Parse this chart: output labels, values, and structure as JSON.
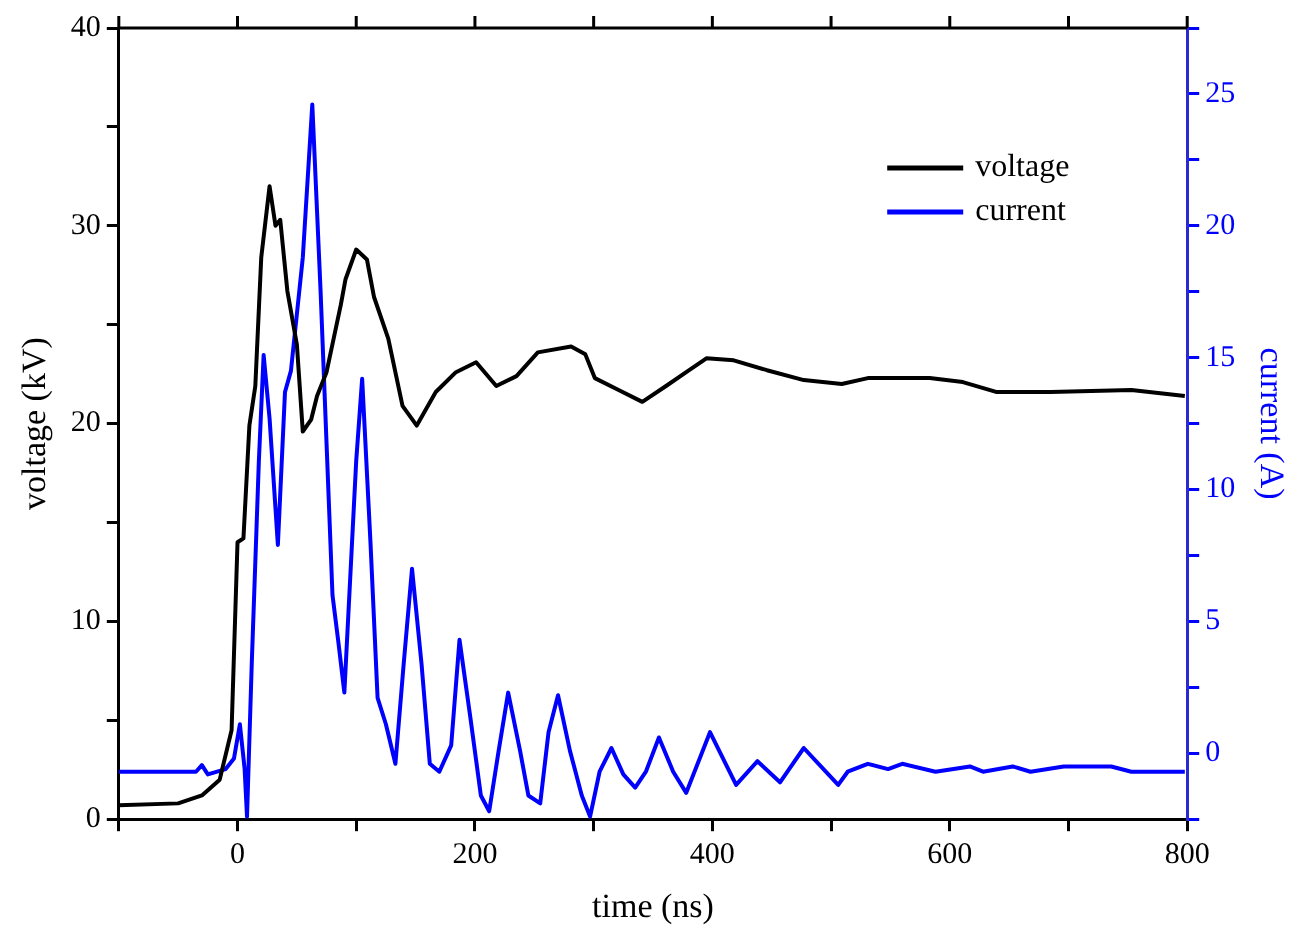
{
  "chart_data": {
    "type": "line",
    "xlabel": "time (ns)",
    "ylabel": "voltage (kV)",
    "y2label": "current (A)",
    "xlim": [
      -100,
      800
    ],
    "xticks": [
      {
        "value": -100,
        "label": null
      },
      0,
      {
        "value": 100,
        "label": null
      },
      200,
      {
        "value": 300,
        "label": null
      },
      400,
      {
        "value": 500,
        "label": null
      },
      600,
      {
        "value": 700,
        "label": null
      },
      800
    ],
    "ylim": [
      0,
      40
    ],
    "yticks": [
      0,
      {
        "value": 5,
        "label": null
      },
      10,
      {
        "value": 15,
        "label": null
      },
      20,
      {
        "value": 25,
        "label": null
      },
      30,
      {
        "value": 35,
        "label": null
      },
      40
    ],
    "y2lim": [
      -2.5,
      27.5
    ],
    "y2ticks": [
      {
        "value": -2.5,
        "label": null
      },
      0,
      {
        "value": 2.5,
        "label": null
      },
      5,
      {
        "value": 7.5,
        "label": null
      },
      10,
      {
        "value": 12.5,
        "label": null
      },
      15,
      {
        "value": 17.5,
        "label": null
      },
      20,
      {
        "value": 22.5,
        "label": null
      },
      25,
      {
        "value": 27.5,
        "label": null
      }
    ],
    "grid": false,
    "legend": "top right",
    "marker": "none",
    "line_style": "solid",
    "series": [
      {
        "name": "voltage",
        "color": "#000000",
        "x": [
          -100,
          -50,
          -30,
          -15,
          -5,
          0,
          5,
          10,
          15,
          20,
          27,
          32,
          36,
          42,
          50,
          55,
          62,
          67,
          75,
          87,
          91,
          100,
          109,
          115,
          127,
          139,
          151,
          167,
          184,
          201,
          218,
          235,
          253,
          281,
          293,
          301,
          321,
          341,
          361,
          378,
          395,
          418,
          446,
          477,
          509,
          531,
          583,
          611,
          639,
          685,
          753,
          798
        ],
        "values": [
          0.7,
          0.8,
          1.2,
          2.0,
          4.5,
          14.0,
          14.2,
          19.9,
          21.9,
          28.4,
          32.0,
          30.0,
          30.3,
          26.7,
          24.0,
          19.6,
          20.2,
          21.4,
          22.6,
          26.0,
          27.3,
          28.8,
          28.3,
          26.4,
          24.3,
          20.9,
          19.9,
          21.6,
          22.6,
          23.1,
          21.9,
          22.4,
          23.6,
          23.9,
          23.5,
          22.3,
          21.7,
          21.1,
          21.9,
          22.6,
          23.3,
          23.2,
          22.7,
          22.2,
          22.0,
          22.3,
          22.3,
          22.1,
          21.6,
          21.6,
          21.7,
          21.4
        ]
      },
      {
        "name": "current",
        "color": "#0000ff",
        "axis": "y2",
        "x": [
          -100,
          -35,
          -30,
          -25,
          -10,
          -3,
          2,
          6,
          8,
          12,
          18,
          22,
          27,
          34,
          40,
          45,
          55,
          63,
          70,
          80,
          85,
          90,
          100,
          105,
          112,
          118,
          125,
          133,
          140,
          147,
          155,
          162,
          170,
          180,
          187,
          196,
          205,
          212,
          220,
          228,
          238,
          245,
          255,
          262,
          270,
          280,
          290,
          297,
          305,
          315,
          325,
          335,
          344,
          355,
          367,
          378,
          398,
          420,
          438,
          457,
          477,
          506,
          514,
          531,
          548,
          560,
          588,
          617,
          628,
          653,
          668,
          696,
          736,
          753,
          798
        ],
        "values": [
          -0.7,
          -0.7,
          -0.45,
          -0.8,
          -0.6,
          -0.2,
          1.1,
          -0.6,
          -2.4,
          3.4,
          11.1,
          15.1,
          12.7,
          7.9,
          13.7,
          14.5,
          18.8,
          24.6,
          17.5,
          6.0,
          4.2,
          2.3,
          11.1,
          14.2,
          8.0,
          2.1,
          1.1,
          -0.4,
          3.4,
          7.0,
          3.4,
          -0.4,
          -0.7,
          0.3,
          4.3,
          1.4,
          -1.6,
          -2.2,
          0.1,
          2.3,
          0.1,
          -1.6,
          -1.9,
          0.8,
          2.2,
          0.1,
          -1.6,
          -2.4,
          -0.7,
          0.2,
          -0.8,
          -1.3,
          -0.7,
          0.6,
          -0.7,
          -1.5,
          0.8,
          -1.2,
          -0.3,
          -1.1,
          0.2,
          -1.2,
          -0.7,
          -0.4,
          -0.6,
          -0.4,
          -0.7,
          -0.5,
          -0.7,
          -0.5,
          -0.7,
          -0.5,
          -0.5,
          -0.7,
          -0.7
        ]
      }
    ]
  }
}
